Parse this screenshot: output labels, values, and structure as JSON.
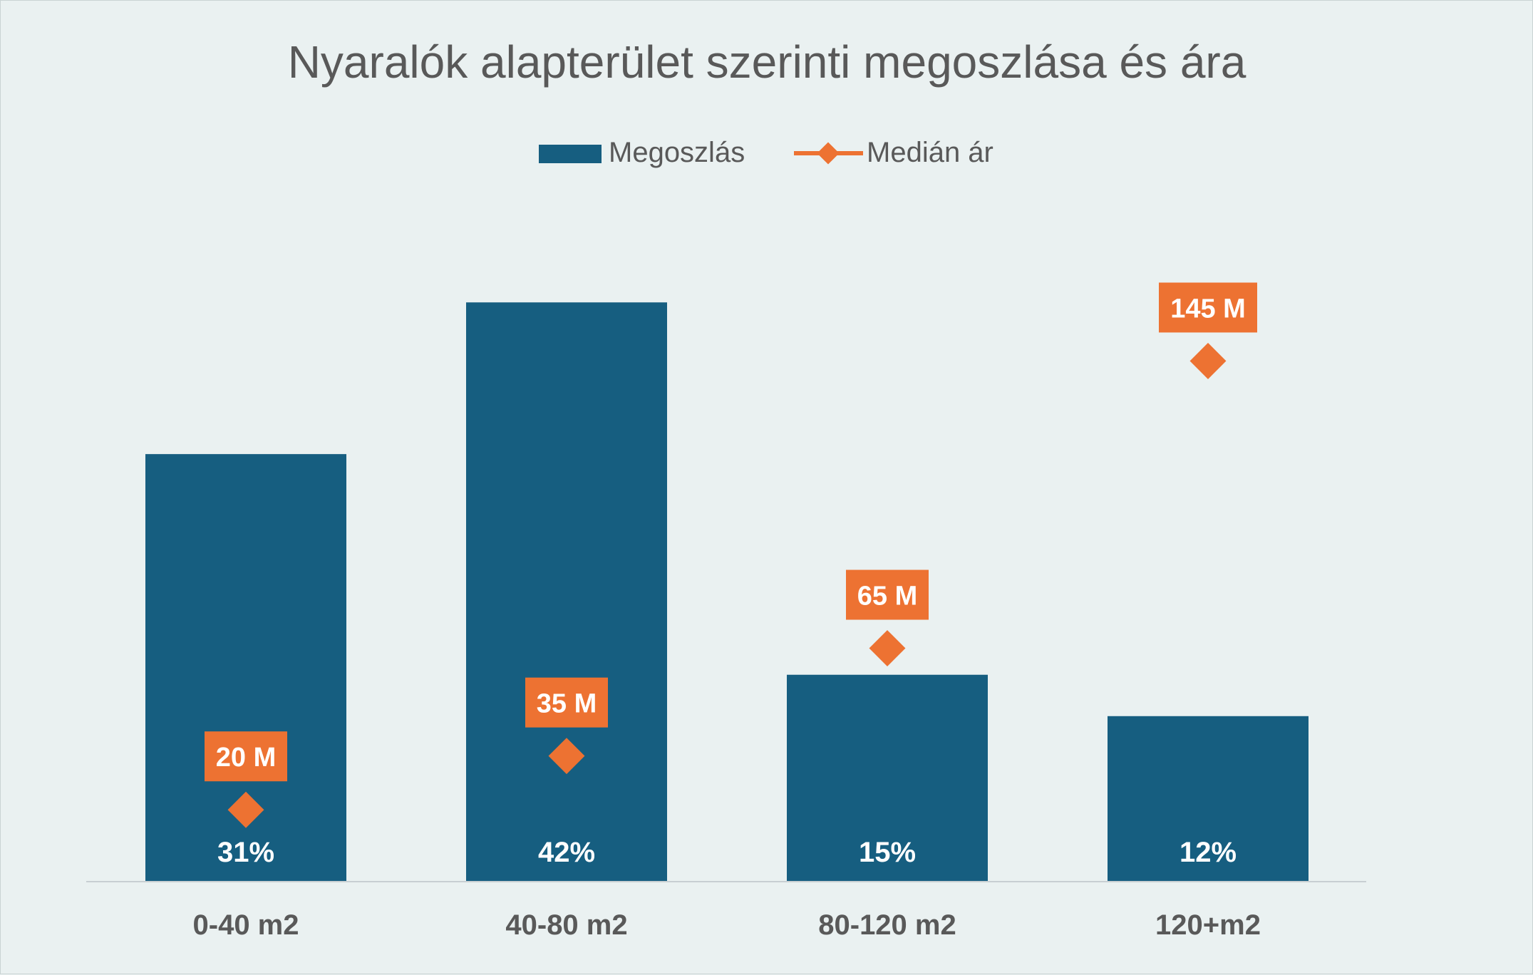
{
  "chart_data": {
    "type": "bar",
    "title": "Nyaralók alapterület szerinti megoszlása és ára",
    "categories": [
      "0-40 m2",
      "40-80 m2",
      "80-120 m2",
      "120+m2"
    ],
    "series": [
      {
        "name": "Megoszlás",
        "kind": "bar",
        "color": "#165e80",
        "values": [
          31,
          42,
          15,
          12
        ],
        "labels": [
          "31%",
          "42%",
          "15%",
          "12%"
        ]
      },
      {
        "name": "Medián ár",
        "kind": "line-markers",
        "color": "#ed7232",
        "values": [
          20,
          35,
          65,
          145
        ],
        "labels": [
          "20 M",
          "35 M",
          "65 M",
          "145 M"
        ]
      }
    ],
    "y_primary_range": [
      0,
      45
    ],
    "y_secondary_range": [
      0,
      185
    ],
    "legend_position": "top-center",
    "grid": false
  }
}
